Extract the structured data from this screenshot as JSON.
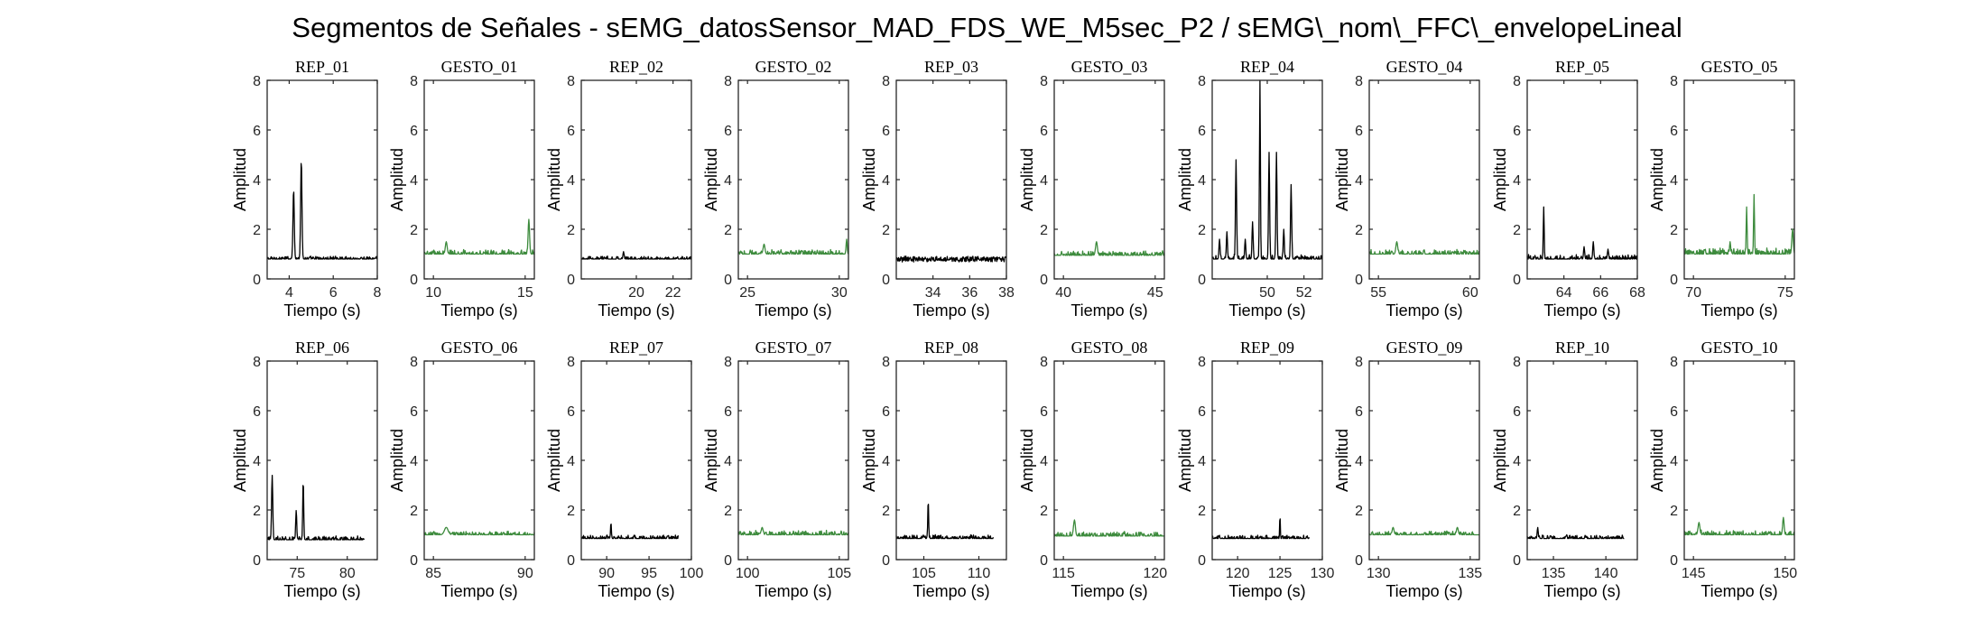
{
  "figure": {
    "title": "Segmentos de Señales - sEMG_datosSensor_MAD_FDS_WE_M5sec_P2 / sEMG\\_nom\\_FFC\\_envelopeLineal"
  },
  "colors": {
    "rep": "#000000",
    "gesto": "#3d8b3d",
    "axis": "#262626"
  },
  "chart_data": [
    {
      "type": "line",
      "title": "REP_01",
      "xlabel": "Tiempo (s)",
      "ylabel": "Amplitud",
      "xlim": [
        3,
        8
      ],
      "ylim": [
        0,
        8
      ],
      "xticks": [
        4,
        6,
        8
      ],
      "yticks": [
        0,
        2,
        4,
        6,
        8
      ],
      "color": "#000000",
      "base": 0.8,
      "noise": 0.1,
      "peaks": [
        [
          4.2,
          3.6,
          0.06
        ],
        [
          4.55,
          4.8,
          0.06
        ]
      ]
    },
    {
      "type": "line",
      "title": "GESTO_01",
      "xlabel": "Tiempo (s)",
      "ylabel": "Amplitud",
      "xlim": [
        9.5,
        15.5
      ],
      "ylim": [
        0,
        8
      ],
      "xticks": [
        10,
        15
      ],
      "yticks": [
        0,
        2,
        4,
        6,
        8
      ],
      "color": "#3d8b3d",
      "base": 1.0,
      "noise": 0.15,
      "peaks": [
        [
          10.7,
          1.5,
          0.1
        ],
        [
          15.2,
          2.4,
          0.08
        ]
      ]
    },
    {
      "type": "line",
      "title": "REP_02",
      "xlabel": "Tiempo (s)",
      "ylabel": "Amplitud",
      "xlim": [
        17,
        23
      ],
      "ylim": [
        0,
        8
      ],
      "xticks": [
        20,
        22
      ],
      "yticks": [
        0,
        2,
        4,
        6,
        8
      ],
      "color": "#000000",
      "base": 0.8,
      "noise": 0.1,
      "peaks": [
        [
          19.3,
          1.1,
          0.06
        ]
      ]
    },
    {
      "type": "line",
      "title": "GESTO_02",
      "xlabel": "Tiempo (s)",
      "ylabel": "Amplitud",
      "xlim": [
        24.5,
        30.5
      ],
      "ylim": [
        0,
        8
      ],
      "xticks": [
        25,
        30
      ],
      "yticks": [
        0,
        2,
        4,
        6,
        8
      ],
      "color": "#3d8b3d",
      "base": 1.0,
      "noise": 0.15,
      "peaks": [
        [
          25.9,
          1.4,
          0.1
        ],
        [
          30.4,
          1.6,
          0.06
        ]
      ]
    },
    {
      "type": "line",
      "title": "REP_03",
      "xlabel": "Tiempo (s)",
      "ylabel": "Amplitud",
      "xlim": [
        32,
        38
      ],
      "ylim": [
        0,
        8
      ],
      "xticks": [
        34,
        36,
        38
      ],
      "yticks": [
        0,
        2,
        4,
        6,
        8
      ],
      "color": "#000000",
      "base": 0.8,
      "noise": 0.1,
      "peaks": []
    },
    {
      "type": "line",
      "title": "GESTO_03",
      "xlabel": "Tiempo (s)",
      "ylabel": "Amplitud",
      "xlim": [
        39.5,
        45.5
      ],
      "ylim": [
        0,
        8
      ],
      "xticks": [
        40,
        45
      ],
      "yticks": [
        0,
        2,
        4,
        6,
        8
      ],
      "color": "#3d8b3d",
      "base": 0.95,
      "noise": 0.15,
      "peaks": [
        [
          41.8,
          1.5,
          0.1
        ]
      ]
    },
    {
      "type": "line",
      "title": "REP_04",
      "xlabel": "Tiempo (s)",
      "ylabel": "Amplitud",
      "xlim": [
        47,
        53
      ],
      "ylim": [
        0,
        8
      ],
      "xticks": [
        50,
        52
      ],
      "yticks": [
        0,
        2,
        4,
        6,
        8
      ],
      "color": "#000000",
      "base": 0.8,
      "noise": 0.15,
      "peaks": [
        [
          47.4,
          1.6,
          0.06
        ],
        [
          47.8,
          1.9,
          0.06
        ],
        [
          48.3,
          4.8,
          0.06
        ],
        [
          48.8,
          1.6,
          0.06
        ],
        [
          49.2,
          2.3,
          0.06
        ],
        [
          49.6,
          8.0,
          0.05
        ],
        [
          50.1,
          5.1,
          0.06
        ],
        [
          50.5,
          5.1,
          0.06
        ],
        [
          50.9,
          2.0,
          0.06
        ],
        [
          51.3,
          3.8,
          0.06
        ]
      ]
    },
    {
      "type": "line",
      "title": "GESTO_04",
      "xlabel": "Tiempo (s)",
      "ylabel": "Amplitud",
      "xlim": [
        54.5,
        60.5
      ],
      "ylim": [
        0,
        8
      ],
      "xticks": [
        55,
        60
      ],
      "yticks": [
        0,
        2,
        4,
        6,
        8
      ],
      "color": "#3d8b3d",
      "base": 1.0,
      "noise": 0.15,
      "peaks": [
        [
          56.0,
          1.5,
          0.1
        ]
      ]
    },
    {
      "type": "line",
      "title": "REP_05",
      "xlabel": "Tiempo (s)",
      "ylabel": "Amplitud",
      "xlim": [
        62,
        68
      ],
      "ylim": [
        0,
        8
      ],
      "xticks": [
        64,
        66,
        68
      ],
      "yticks": [
        0,
        2,
        4,
        6,
        8
      ],
      "color": "#000000",
      "base": 0.8,
      "noise": 0.15,
      "peaks": [
        [
          62.9,
          2.9,
          0.05
        ],
        [
          65.1,
          1.3,
          0.06
        ],
        [
          65.6,
          1.5,
          0.06
        ],
        [
          66.4,
          1.2,
          0.06
        ]
      ]
    },
    {
      "type": "line",
      "title": "GESTO_05",
      "xlabel": "Tiempo (s)",
      "ylabel": "Amplitud",
      "xlim": [
        69.5,
        75.5
      ],
      "ylim": [
        0,
        8
      ],
      "xticks": [
        70,
        75
      ],
      "yticks": [
        0,
        2,
        4,
        6,
        8
      ],
      "color": "#3d8b3d",
      "base": 1.0,
      "noise": 0.2,
      "peaks": [
        [
          72.0,
          1.5,
          0.06
        ],
        [
          72.9,
          2.9,
          0.05
        ],
        [
          73.3,
          3.4,
          0.05
        ],
        [
          75.4,
          2.0,
          0.08
        ]
      ]
    },
    {
      "type": "line",
      "title": "REP_06",
      "xlabel": "Tiempo (s)",
      "ylabel": "Amplitud",
      "xlim": [
        72,
        83
      ],
      "ylim": [
        0,
        8
      ],
      "xticks": [
        75,
        80
      ],
      "yticks": [
        0,
        2,
        4,
        6,
        8
      ],
      "color": "#000000",
      "base": 0.8,
      "noise": 0.12,
      "peaks": [
        [
          72.5,
          3.4,
          0.12
        ],
        [
          74.9,
          2.0,
          0.1
        ],
        [
          75.6,
          3.2,
          0.1
        ]
      ]
    },
    {
      "type": "line",
      "title": "GESTO_06",
      "xlabel": "Tiempo (s)",
      "ylabel": "Amplitud",
      "xlim": [
        84.5,
        90.5
      ],
      "ylim": [
        0,
        8
      ],
      "xticks": [
        85,
        90
      ],
      "yticks": [
        0,
        2,
        4,
        6,
        8
      ],
      "color": "#3d8b3d",
      "base": 1.0,
      "noise": 0.12,
      "peaks": [
        [
          85.7,
          1.3,
          0.2
        ]
      ]
    },
    {
      "type": "line",
      "title": "REP_07",
      "xlabel": "Tiempo (s)",
      "ylabel": "Amplitud",
      "xlim": [
        87,
        100
      ],
      "ylim": [
        0,
        8
      ],
      "xticks": [
        90,
        95,
        100
      ],
      "yticks": [
        0,
        2,
        4,
        6,
        8
      ],
      "color": "#000000",
      "base": 0.85,
      "noise": 0.12,
      "peaks": [
        [
          90.5,
          1.5,
          0.1
        ]
      ]
    },
    {
      "type": "line",
      "title": "GESTO_07",
      "xlabel": "Tiempo (s)",
      "ylabel": "Amplitud",
      "xlim": [
        99.5,
        105.5
      ],
      "ylim": [
        0,
        8
      ],
      "xticks": [
        100,
        105
      ],
      "yticks": [
        0,
        2,
        4,
        6,
        8
      ],
      "color": "#3d8b3d",
      "base": 1.0,
      "noise": 0.15,
      "peaks": [
        [
          100.8,
          1.3,
          0.1
        ]
      ]
    },
    {
      "type": "line",
      "title": "REP_08",
      "xlabel": "Tiempo (s)",
      "ylabel": "Amplitud",
      "xlim": [
        102.5,
        112.5
      ],
      "ylim": [
        0,
        8
      ],
      "xticks": [
        105,
        110
      ],
      "yticks": [
        0,
        2,
        4,
        6,
        8
      ],
      "color": "#000000",
      "base": 0.85,
      "noise": 0.12,
      "peaks": [
        [
          105.4,
          2.4,
          0.08
        ]
      ]
    },
    {
      "type": "line",
      "title": "GESTO_08",
      "xlabel": "Tiempo (s)",
      "ylabel": "Amplitud",
      "xlim": [
        114.5,
        120.5
      ],
      "ylim": [
        0,
        8
      ],
      "xticks": [
        115,
        120
      ],
      "yticks": [
        0,
        2,
        4,
        6,
        8
      ],
      "color": "#3d8b3d",
      "base": 0.95,
      "noise": 0.15,
      "peaks": [
        [
          115.6,
          1.6,
          0.1
        ]
      ]
    },
    {
      "type": "line",
      "title": "REP_09",
      "xlabel": "Tiempo (s)",
      "ylabel": "Amplitud",
      "xlim": [
        117,
        130
      ],
      "ylim": [
        0,
        8
      ],
      "xticks": [
        120,
        125,
        130
      ],
      "yticks": [
        0,
        2,
        4,
        6,
        8
      ],
      "color": "#000000",
      "base": 0.85,
      "noise": 0.12,
      "peaks": [
        [
          125.0,
          1.8,
          0.08
        ]
      ]
    },
    {
      "type": "line",
      "title": "GESTO_09",
      "xlabel": "Tiempo (s)",
      "ylabel": "Amplitud",
      "xlim": [
        129.5,
        135.5
      ],
      "ylim": [
        0,
        8
      ],
      "xticks": [
        130,
        135
      ],
      "yticks": [
        0,
        2,
        4,
        6,
        8
      ],
      "color": "#3d8b3d",
      "base": 1.0,
      "noise": 0.12,
      "peaks": [
        [
          130.8,
          1.3,
          0.1
        ],
        [
          134.3,
          1.3,
          0.1
        ]
      ]
    },
    {
      "type": "line",
      "title": "REP_10",
      "xlabel": "Tiempo (s)",
      "ylabel": "Amplitud",
      "xlim": [
        132.5,
        143
      ],
      "ylim": [
        0,
        8
      ],
      "xticks": [
        135,
        140
      ],
      "yticks": [
        0,
        2,
        4,
        6,
        8
      ],
      "color": "#000000",
      "base": 0.85,
      "noise": 0.12,
      "peaks": [
        [
          133.5,
          1.3,
          0.1
        ]
      ]
    },
    {
      "type": "line",
      "title": "GESTO_10",
      "xlabel": "Tiempo (s)",
      "ylabel": "Amplitud",
      "xlim": [
        144.5,
        150.5
      ],
      "ylim": [
        0,
        8
      ],
      "xticks": [
        145,
        150
      ],
      "yticks": [
        0,
        2,
        4,
        6,
        8
      ],
      "color": "#3d8b3d",
      "base": 1.0,
      "noise": 0.15,
      "peaks": [
        [
          145.3,
          1.5,
          0.1
        ],
        [
          149.9,
          1.7,
          0.08
        ]
      ]
    }
  ]
}
